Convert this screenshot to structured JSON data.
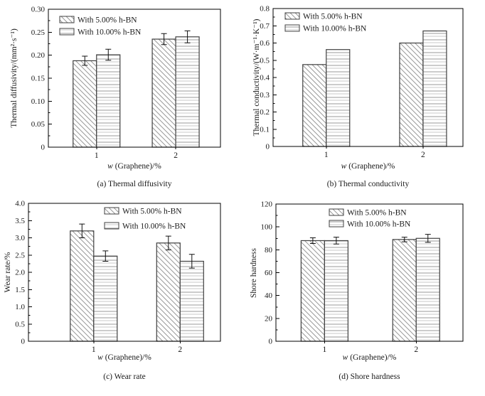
{
  "styles": {
    "background": "#ffffff",
    "axis_color": "#000000",
    "text_color": "#1a1a1a",
    "bar_border": "#404040",
    "hatch_color": "#999999",
    "hatch_color_light": "#c8c8c8",
    "error_bar_color": "#111111"
  },
  "series_labels": [
    "With 5.00% h-BN",
    "With 10.00% h-BN"
  ],
  "chart_data": [
    {
      "id": "a",
      "type": "bar",
      "title": "(a) Thermal diffusivity",
      "xlabel_italic": "w",
      "xlabel_rest": " (Graphene)/%",
      "ylabel": "Thermal diffusivity/(mm²·s⁻¹)",
      "categories": [
        "1",
        "2"
      ],
      "series": [
        {
          "name": "With 5.00% h-BN",
          "hatch": "diagonal",
          "values": [
            0.188,
            0.235
          ],
          "errors": [
            0.01,
            0.012
          ]
        },
        {
          "name": "With 10.00% h-BN",
          "hatch": "horizontal",
          "values": [
            0.201,
            0.24
          ],
          "errors": [
            0.012,
            0.013
          ]
        }
      ],
      "ylim": [
        0,
        0.3
      ],
      "ytick_step": 0.05,
      "yminor_step": 0.025,
      "ytick_decimals": 2,
      "legend_position": "top-left",
      "grid": false
    },
    {
      "id": "b",
      "type": "bar",
      "title": "(b) Thermal conductivity",
      "xlabel_italic": "w",
      "xlabel_rest": " (Graphene)/%",
      "ylabel": "Thermal conductivity/(W·m⁻¹·K⁻¹)",
      "categories": [
        "1",
        "2"
      ],
      "series": [
        {
          "name": "With 5.00% h-BN",
          "hatch": "diagonal",
          "values": [
            0.475,
            0.6
          ],
          "errors": null
        },
        {
          "name": "With 10.00% h-BN",
          "hatch": "horizontal",
          "values": [
            0.562,
            0.67
          ],
          "errors": null
        }
      ],
      "ylim": [
        0,
        0.8
      ],
      "ytick_step": 0.1,
      "yminor_step": 0.05,
      "ytick_decimals": 1,
      "legend_position": "top-left",
      "grid": false
    },
    {
      "id": "c",
      "type": "bar",
      "title": "(c) Wear rate",
      "xlabel_italic": "w",
      "xlabel_rest": " (Graphene)/%",
      "ylabel": "Wear rate/%",
      "categories": [
        "1",
        "2"
      ],
      "series": [
        {
          "name": "With 5.00% h-BN",
          "hatch": "diagonal",
          "values": [
            3.2,
            2.85
          ],
          "errors": [
            0.2,
            0.2
          ]
        },
        {
          "name": "With 10.00% h-BN",
          "hatch": "horizontal",
          "values": [
            2.47,
            2.32
          ],
          "errors": [
            0.15,
            0.2
          ]
        }
      ],
      "ylim": [
        0,
        4.0
      ],
      "ytick_step": 0.5,
      "yminor_step": 0.25,
      "ytick_decimals": 1,
      "legend_position": "top-center",
      "grid": false
    },
    {
      "id": "d",
      "type": "bar",
      "title": "(d) Shore hardness",
      "xlabel_italic": "w",
      "xlabel_rest": " (Graphene)/%",
      "ylabel": "Shore hardness",
      "categories": [
        "1",
        "2"
      ],
      "series": [
        {
          "name": "With 5.00% h-BN",
          "hatch": "diagonal",
          "values": [
            88,
            89
          ],
          "errors": [
            2.5,
            2.0
          ]
        },
        {
          "name": "With 10.00% h-BN",
          "hatch": "horizontal",
          "values": [
            88,
            90
          ],
          "errors": [
            3.0,
            3.5
          ]
        }
      ],
      "ylim": [
        0,
        120
      ],
      "ytick_step": 20,
      "yminor_step": 10,
      "ytick_decimals": 0,
      "legend_position": "top-center",
      "grid": false
    }
  ]
}
